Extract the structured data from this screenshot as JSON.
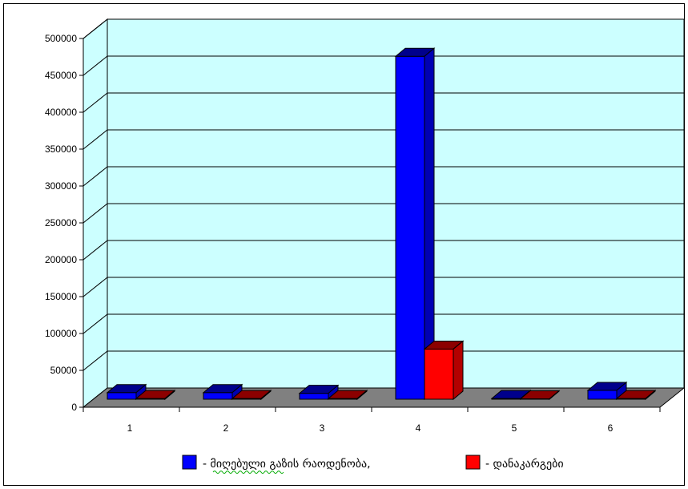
{
  "chart_data": {
    "type": "bar",
    "three_d": true,
    "categories": [
      "1",
      "2",
      "3",
      "4",
      "5",
      "6"
    ],
    "series": [
      {
        "name": "- მიღებული გაზის რაოდენობა,",
        "color": "#0000ff",
        "values": [
          9000,
          9000,
          8000,
          465000,
          1000,
          12000
        ]
      },
      {
        "name": "- დანაკარგები",
        "color": "#ff0000",
        "values": [
          1000,
          1000,
          1000,
          68000,
          500,
          1000
        ]
      }
    ],
    "ylim": [
      0,
      500000
    ],
    "yticks": [
      "0",
      "50000",
      "100000",
      "150000",
      "200000",
      "250000",
      "300000",
      "350000",
      "400000",
      "450000",
      "500000"
    ],
    "grid": true,
    "legend_position": "bottom",
    "colors": {
      "wall": "#ccffff",
      "floor": "#808080",
      "blue": "#0000ff",
      "red": "#ff0000"
    }
  }
}
